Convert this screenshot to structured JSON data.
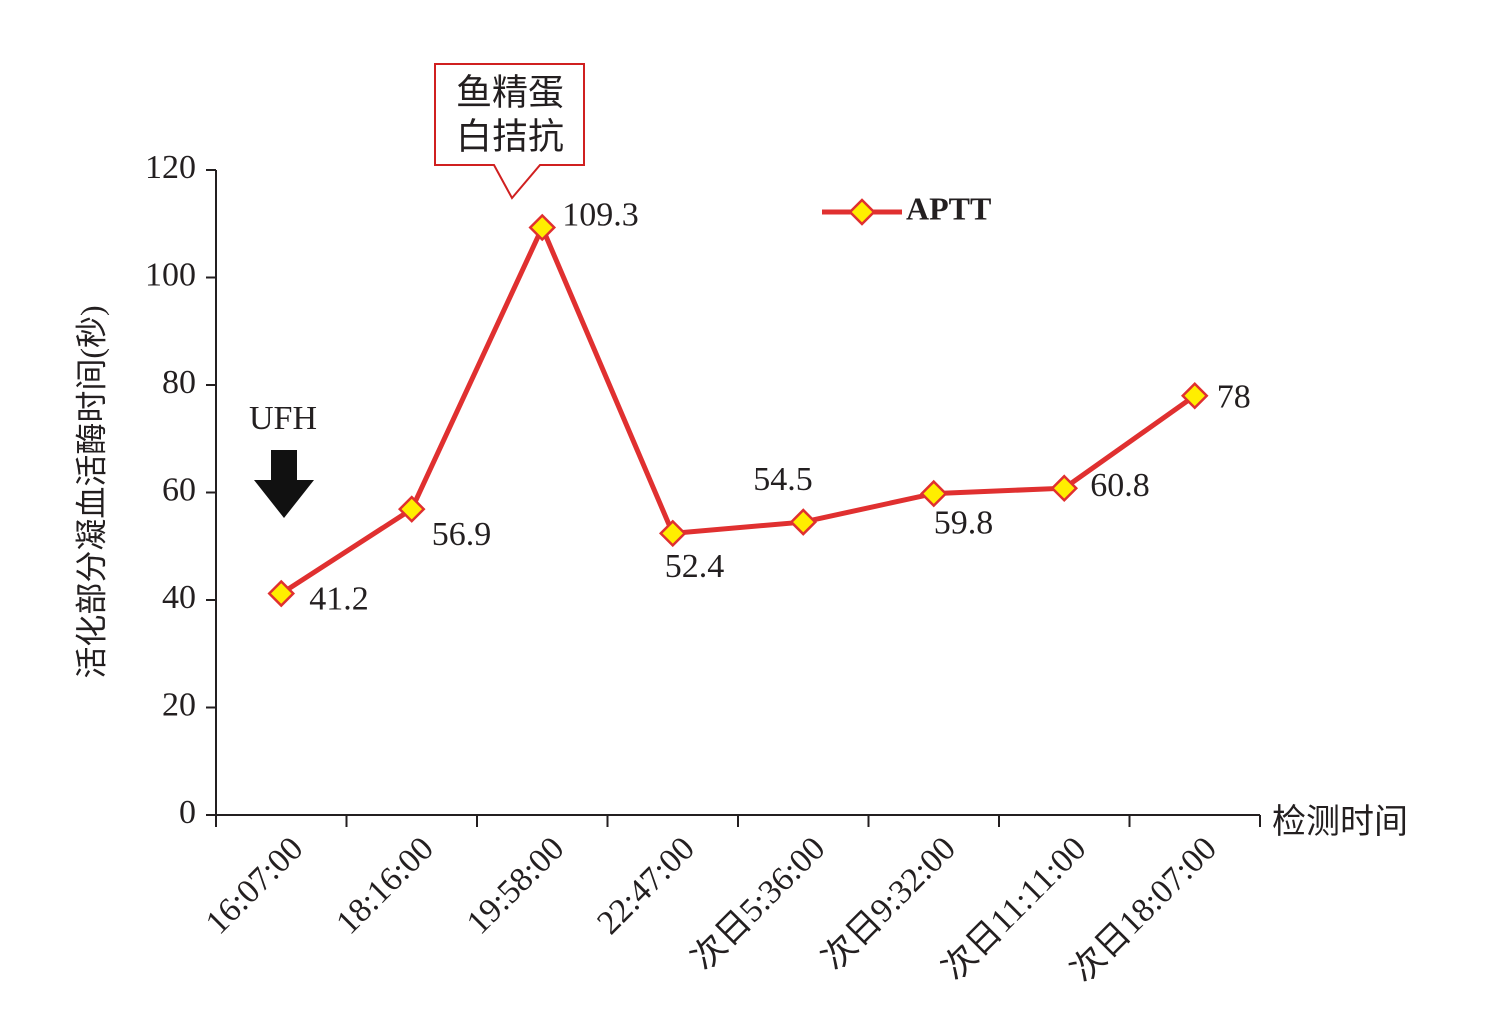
{
  "chart_data": {
    "type": "line",
    "y_label": "活化部分凝血活酶时间(秒)",
    "x_label": "检测时间",
    "categories": [
      "16:07:00",
      "18:16:00",
      "19:58:00",
      "22:47:00",
      "次日5:36:00",
      "次日9:32:00",
      "次日11:11:00",
      "次日18:07:00"
    ],
    "series": [
      {
        "name": "APTT",
        "color": "#e03030",
        "marker_color": "#ffee00",
        "values": [
          41.2,
          56.9,
          109.3,
          52.4,
          54.5,
          59.8,
          60.8,
          78
        ]
      }
    ],
    "ylim": [
      0,
      120
    ],
    "yticks": [
      0,
      20,
      40,
      60,
      80,
      100,
      120
    ],
    "annotations": {
      "ufh": "UFH",
      "callout": [
        "鱼精蛋",
        "白拮抗"
      ]
    }
  }
}
